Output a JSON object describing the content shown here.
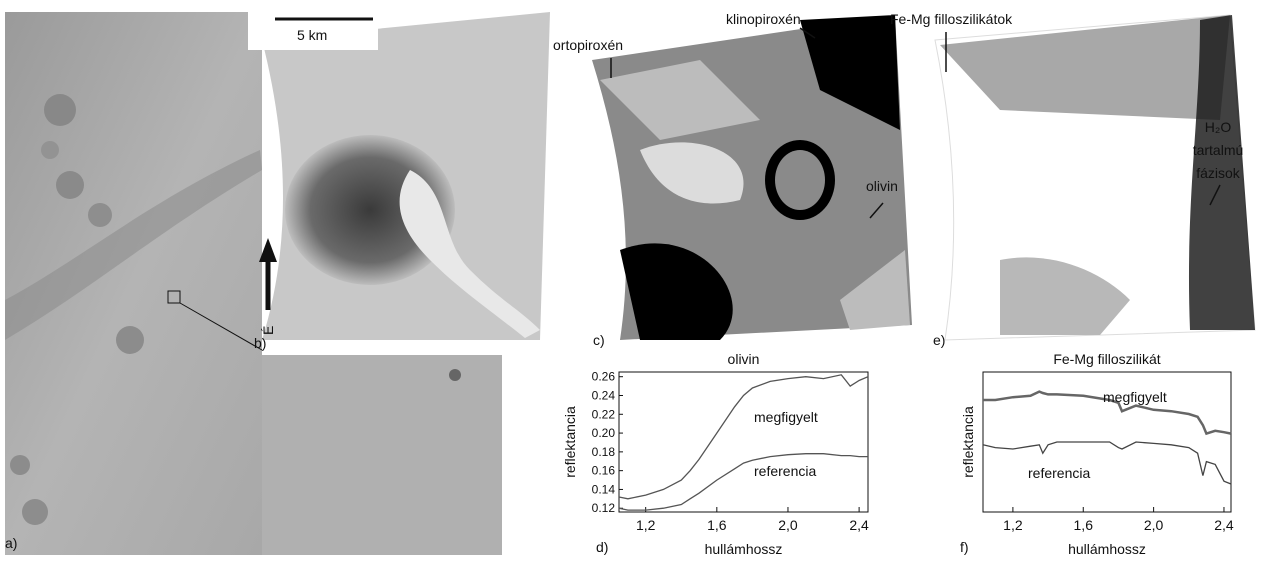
{
  "panel_labels": [
    "a)",
    "b)",
    "c)",
    "e)"
  ],
  "scale_bar": "5 km",
  "north_label": "É",
  "annotations": {
    "klinopiroxen": "klinopiroxén",
    "ortopiroxen": "ortopiroxén",
    "olivin": "olivin",
    "fe_mg": "Fe-Mg filloszilikátok",
    "h2o": [
      "H₂O",
      "tartalmú",
      "fázisok"
    ]
  },
  "chart_data": [
    {
      "type": "line",
      "panel": "d)",
      "title": "olivin",
      "x_label": "hullámhossz",
      "y_label": "reflektancia",
      "xlim": [
        1.05,
        2.45
      ],
      "xticks": [
        {
          "value": 1.2,
          "label": "1,2"
        },
        {
          "value": 1.6,
          "label": "1,6"
        },
        {
          "value": 2.0,
          "label": "2,0"
        },
        {
          "value": 2.4,
          "label": "2,4"
        }
      ],
      "ylim": [
        0.116,
        0.265
      ],
      "yticks": [
        0.12,
        0.14,
        0.16,
        0.18,
        {
          "value": 0.2,
          "label": "0.20"
        },
        0.22,
        0.24,
        0.26
      ],
      "x": [
        1.05,
        1.1,
        1.2,
        1.3,
        1.4,
        1.45,
        1.5,
        1.6,
        1.7,
        1.75,
        1.8,
        1.9,
        2.0,
        2.1,
        2.2,
        2.3,
        2.35,
        2.4,
        2.45
      ],
      "series": [
        {
          "name": "megfigyelt",
          "color": "#555",
          "values": [
            0.132,
            0.13,
            0.134,
            0.14,
            0.15,
            0.16,
            0.172,
            0.2,
            0.228,
            0.24,
            0.248,
            0.255,
            0.258,
            0.26,
            0.258,
            0.262,
            0.25,
            0.256,
            0.26
          ]
        },
        {
          "name": "referencia",
          "color": "#555",
          "values": [
            0.12,
            0.118,
            0.118,
            0.12,
            0.124,
            0.13,
            0.136,
            0.15,
            0.162,
            0.168,
            0.171,
            0.175,
            0.177,
            0.178,
            0.178,
            0.176,
            0.176,
            0.175,
            0.175
          ]
        }
      ]
    },
    {
      "type": "line",
      "panel": "f)",
      "title": "Fe-Mg filloszilikát",
      "x_label": "hullámhossz",
      "y_label": "reflektancia",
      "xlim": [
        1.03,
        2.44
      ],
      "xticks": [
        {
          "value": 1.2,
          "label": "1,2"
        },
        {
          "value": 1.6,
          "label": "1,6"
        },
        {
          "value": 2.0,
          "label": "2,0"
        },
        {
          "value": 2.4,
          "label": "2,4"
        }
      ],
      "ylim": [
        0,
        1
      ],
      "x": [
        1.03,
        1.1,
        1.2,
        1.3,
        1.35,
        1.37,
        1.4,
        1.45,
        1.6,
        1.75,
        1.8,
        1.82,
        1.9,
        2.0,
        2.1,
        2.2,
        2.25,
        2.28,
        2.3,
        2.35,
        2.4,
        2.44
      ],
      "series": [
        {
          "name": "megfigyelt",
          "color": "#666",
          "values": [
            0.8,
            0.8,
            0.82,
            0.83,
            0.86,
            0.85,
            0.84,
            0.84,
            0.83,
            0.8,
            0.78,
            0.72,
            0.76,
            0.73,
            0.72,
            0.7,
            0.68,
            0.62,
            0.56,
            0.58,
            0.57,
            0.56
          ]
        },
        {
          "name": "referencia",
          "color": "#444",
          "values": [
            0.48,
            0.46,
            0.45,
            0.47,
            0.48,
            0.42,
            0.48,
            0.5,
            0.5,
            0.5,
            0.46,
            0.45,
            0.5,
            0.49,
            0.48,
            0.46,
            0.42,
            0.26,
            0.36,
            0.34,
            0.22,
            0.2
          ]
        }
      ]
    }
  ]
}
